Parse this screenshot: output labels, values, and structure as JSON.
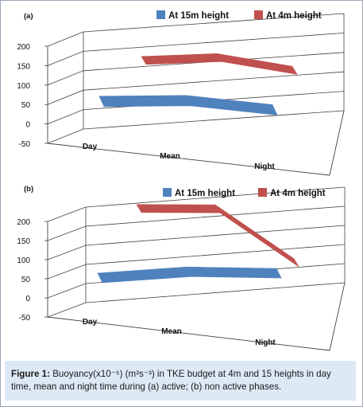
{
  "chart_data": [
    {
      "type": "line",
      "panel_label": "(a)",
      "categories": [
        "Day",
        "Mean",
        "Night"
      ],
      "series": [
        {
          "name": "At 15m height",
          "color": "#4f81bd",
          "values": [
            40,
            28,
            -10
          ]
        },
        {
          "name": "At 4m height",
          "color": "#c0504d",
          "values": [
            115,
            110,
            65
          ]
        }
      ],
      "ylim": [
        -50,
        200
      ],
      "yticks": [
        -50,
        0,
        50,
        100,
        150,
        200
      ],
      "grid": true,
      "legend": "top"
    },
    {
      "type": "line",
      "panel_label": "(b)",
      "categories": [
        "Day",
        "Mean",
        "Night"
      ],
      "series": [
        {
          "name": "At 15m height",
          "color": "#4f81bd",
          "values": [
            25,
            25,
            5
          ]
        },
        {
          "name": "At 4m height",
          "color": "#c0504d",
          "values": [
            185,
            170,
            15
          ]
        }
      ],
      "ylim": [
        -50,
        200
      ],
      "yticks": [
        -50,
        0,
        50,
        100,
        150,
        200
      ],
      "grid": true,
      "legend": "top"
    }
  ],
  "caption": {
    "label": "Figure 1:",
    "text": "Buoyancy(x10⁻⁵) (m²s⁻³) in TKE budget at 4m and 15 heights in day time, mean and night time during (a) active; (b) non active phases."
  }
}
